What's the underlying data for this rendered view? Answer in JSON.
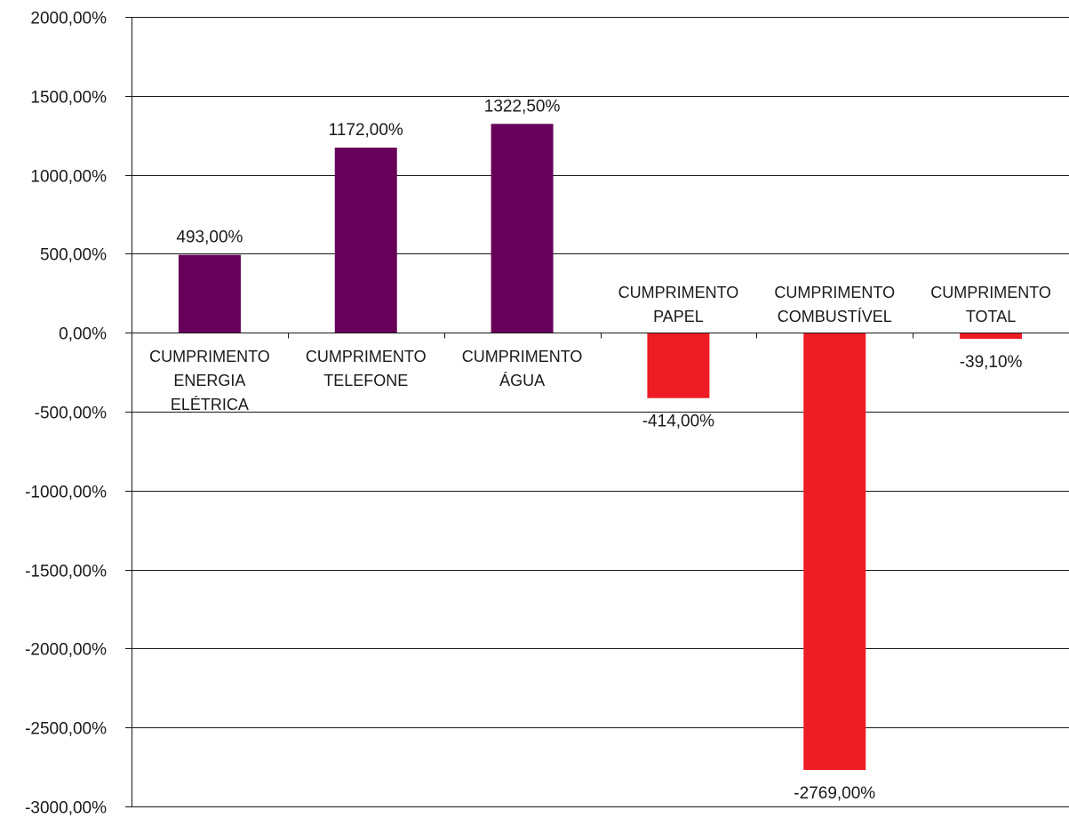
{
  "chart_data": {
    "type": "bar",
    "title": "",
    "xlabel": "",
    "ylabel": "",
    "ylim": [
      -3000,
      2000
    ],
    "grid": true,
    "legend": "none",
    "y_ticks": [
      {
        "value": 2000,
        "label": "2000,00%"
      },
      {
        "value": 1500,
        "label": "1500,00%"
      },
      {
        "value": 1000,
        "label": "1000,00%"
      },
      {
        "value": 500,
        "label": "500,00%"
      },
      {
        "value": 0,
        "label": "0,00%"
      },
      {
        "value": -500,
        "label": "-500,00%"
      },
      {
        "value": -1000,
        "label": "-1000,00%"
      },
      {
        "value": -1500,
        "label": "-1500,00%"
      },
      {
        "value": -2000,
        "label": "-2000,00%"
      },
      {
        "value": -2500,
        "label": "-2500,00%"
      },
      {
        "value": -3000,
        "label": "-3000,00%"
      }
    ],
    "categories": [
      [
        "CUMPRIMENTO",
        "ENERGIA",
        "ELÉTRICA"
      ],
      [
        "CUMPRIMENTO",
        "TELEFONE"
      ],
      [
        "CUMPRIMENTO",
        "ÁGUA"
      ],
      [
        "CUMPRIMENTO",
        "PAPEL"
      ],
      [
        "CUMPRIMENTO",
        "COMBUSTÍVEL"
      ],
      [
        "CUMPRIMENTO",
        "TOTAL"
      ]
    ],
    "values": [
      493,
      1172,
      1322.5,
      -414,
      -2769,
      -39.1
    ],
    "data_labels": [
      "493,00%",
      "1172,00%",
      "1322,50%",
      "-414,00%",
      "-2769,00%",
      "-39,10%"
    ],
    "colors": {
      "positive": "#660058",
      "negative": "#ee1c24",
      "grid": "#1a1a1a",
      "axis": "#1a1a1a",
      "text": "#1a1a1a"
    }
  }
}
